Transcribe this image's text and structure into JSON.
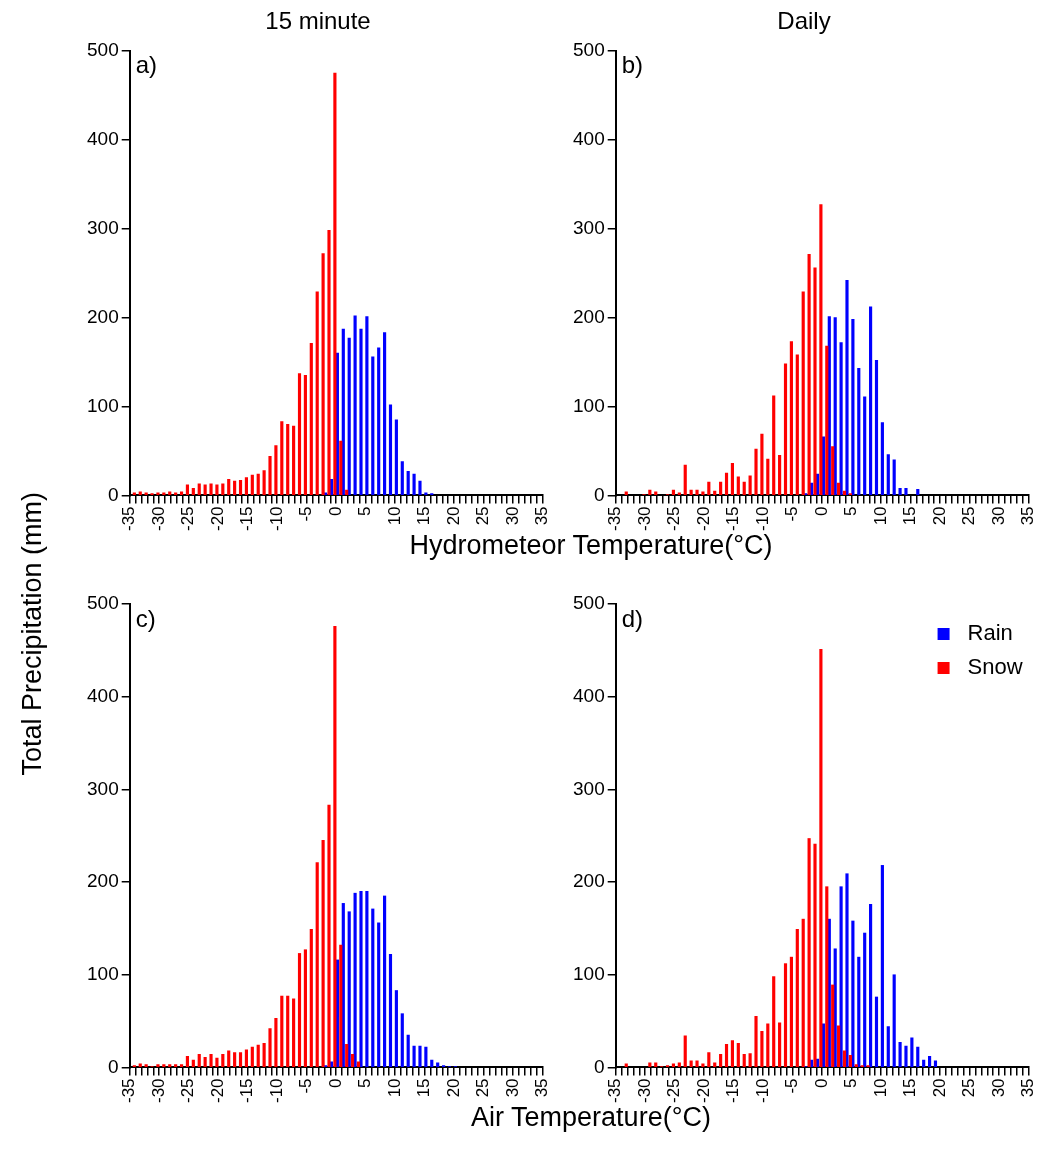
{
  "chart_data": [
    {
      "type": "bar",
      "title": "15 minute",
      "xlabel": "Hydrometeor Temperature(°C)",
      "ylabel": "Total Precipitation (mm)",
      "annotations": [
        "a)"
      ],
      "xlim": [
        -35,
        35
      ],
      "xticks": [
        -35,
        {
          "value": -34,
          "label": null
        },
        {
          "value": -33,
          "label": null
        },
        {
          "value": -32,
          "label": null
        },
        {
          "value": -31,
          "label": null
        },
        -30,
        {
          "value": -29,
          "label": null
        },
        {
          "value": -28,
          "label": null
        },
        {
          "value": -27,
          "label": null
        },
        {
          "value": -26,
          "label": null
        },
        -25,
        {
          "value": -24,
          "label": null
        },
        {
          "value": -23,
          "label": null
        },
        {
          "value": -22,
          "label": null
        },
        {
          "value": -21,
          "label": null
        },
        -20,
        {
          "value": -19,
          "label": null
        },
        {
          "value": -18,
          "label": null
        },
        {
          "value": -17,
          "label": null
        },
        {
          "value": -16,
          "label": null
        },
        -15,
        {
          "value": -14,
          "label": null
        },
        {
          "value": -13,
          "label": null
        },
        {
          "value": -12,
          "label": null
        },
        {
          "value": -11,
          "label": null
        },
        -10,
        {
          "value": -9,
          "label": null
        },
        {
          "value": -8,
          "label": null
        },
        {
          "value": -7,
          "label": null
        },
        {
          "value": -6,
          "label": null
        },
        -5,
        {
          "value": -4,
          "label": null
        },
        {
          "value": -3,
          "label": null
        },
        {
          "value": -2,
          "label": null
        },
        {
          "value": -1,
          "label": null
        },
        0,
        {
          "value": 1,
          "label": null
        },
        {
          "value": 2,
          "label": null
        },
        {
          "value": 3,
          "label": null
        },
        {
          "value": 4,
          "label": null
        },
        5,
        {
          "value": 6,
          "label": null
        },
        {
          "value": 7,
          "label": null
        },
        {
          "value": 8,
          "label": null
        },
        {
          "value": 9,
          "label": null
        },
        10,
        {
          "value": 11,
          "label": null
        },
        {
          "value": 12,
          "label": null
        },
        {
          "value": 13,
          "label": null
        },
        {
          "value": 14,
          "label": null
        },
        15,
        {
          "value": 16,
          "label": null
        },
        {
          "value": 17,
          "label": null
        },
        {
          "value": 18,
          "label": null
        },
        {
          "value": 19,
          "label": null
        },
        20,
        {
          "value": 21,
          "label": null
        },
        {
          "value": 22,
          "label": null
        },
        {
          "value": 23,
          "label": null
        },
        {
          "value": 24,
          "label": null
        },
        25,
        {
          "value": 26,
          "label": null
        },
        {
          "value": 27,
          "label": null
        },
        {
          "value": 28,
          "label": null
        },
        {
          "value": 29,
          "label": null
        },
        30,
        {
          "value": 31,
          "label": null
        },
        {
          "value": 32,
          "label": null
        },
        {
          "value": 33,
          "label": null
        },
        {
          "value": 34,
          "label": null
        },
        35
      ],
      "ylim": [
        0,
        500
      ],
      "yticks": [
        0,
        100,
        200,
        300,
        400,
        500
      ],
      "series": [
        {
          "color": "#0000ff",
          "x": [
            -2,
            -1,
            0,
            1,
            2,
            3,
            4,
            5,
            6,
            7,
            8,
            9,
            10,
            11,
            12,
            13,
            14,
            15,
            16
          ],
          "values": [
            3,
            18,
            160,
            187,
            177,
            202,
            187,
            201,
            156,
            166,
            183,
            102,
            85,
            38,
            27,
            24,
            16,
            3,
            2
          ]
        },
        {
          "color": "#ff0000",
          "x": [
            -34,
            -33,
            -32,
            -31,
            -30,
            -29,
            -28,
            -27,
            -26,
            -25,
            -24,
            -23,
            -22,
            -21,
            -20,
            -19,
            -18,
            -17,
            -16,
            -15,
            -14,
            -13,
            -12,
            -11,
            -10,
            -9,
            -8,
            -7,
            -6,
            -5,
            -4,
            -3,
            -2,
            -1,
            0,
            1,
            2
          ],
          "values": [
            3,
            4,
            3,
            2,
            3,
            3,
            4,
            3,
            4,
            12,
            8,
            13,
            12,
            13,
            12,
            13,
            18,
            16,
            17,
            20,
            23,
            24,
            28,
            44,
            56,
            83,
            80,
            78,
            137,
            135,
            171,
            229,
            272,
            298,
            475,
            61,
            6
          ]
        }
      ]
    },
    {
      "type": "bar",
      "title": "Daily",
      "annotations": [
        "b)"
      ],
      "xlim": [
        -35,
        35
      ],
      "xticks": [
        -35,
        {
          "value": -34,
          "label": null
        },
        {
          "value": -33,
          "label": null
        },
        {
          "value": -32,
          "label": null
        },
        {
          "value": -31,
          "label": null
        },
        -30,
        {
          "value": -29,
          "label": null
        },
        {
          "value": -28,
          "label": null
        },
        {
          "value": -27,
          "label": null
        },
        {
          "value": -26,
          "label": null
        },
        -25,
        {
          "value": -24,
          "label": null
        },
        {
          "value": -23,
          "label": null
        },
        {
          "value": -22,
          "label": null
        },
        {
          "value": -21,
          "label": null
        },
        -20,
        {
          "value": -19,
          "label": null
        },
        {
          "value": -18,
          "label": null
        },
        {
          "value": -17,
          "label": null
        },
        {
          "value": -16,
          "label": null
        },
        -15,
        {
          "value": -14,
          "label": null
        },
        {
          "value": -13,
          "label": null
        },
        {
          "value": -12,
          "label": null
        },
        {
          "value": -11,
          "label": null
        },
        -10,
        {
          "value": -9,
          "label": null
        },
        {
          "value": -8,
          "label": null
        },
        {
          "value": -7,
          "label": null
        },
        {
          "value": -6,
          "label": null
        },
        -5,
        {
          "value": -4,
          "label": null
        },
        {
          "value": -3,
          "label": null
        },
        {
          "value": -2,
          "label": null
        },
        {
          "value": -1,
          "label": null
        },
        0,
        {
          "value": 1,
          "label": null
        },
        {
          "value": 2,
          "label": null
        },
        {
          "value": 3,
          "label": null
        },
        {
          "value": 4,
          "label": null
        },
        5,
        {
          "value": 6,
          "label": null
        },
        {
          "value": 7,
          "label": null
        },
        {
          "value": 8,
          "label": null
        },
        {
          "value": 9,
          "label": null
        },
        10,
        {
          "value": 11,
          "label": null
        },
        {
          "value": 12,
          "label": null
        },
        {
          "value": 13,
          "label": null
        },
        {
          "value": 14,
          "label": null
        },
        15,
        {
          "value": 16,
          "label": null
        },
        {
          "value": 17,
          "label": null
        },
        {
          "value": 18,
          "label": null
        },
        {
          "value": 19,
          "label": null
        },
        20,
        {
          "value": 21,
          "label": null
        },
        {
          "value": 22,
          "label": null
        },
        {
          "value": 23,
          "label": null
        },
        {
          "value": 24,
          "label": null
        },
        25,
        {
          "value": 26,
          "label": null
        },
        {
          "value": 27,
          "label": null
        },
        {
          "value": 28,
          "label": null
        },
        {
          "value": 29,
          "label": null
        },
        30,
        {
          "value": 31,
          "label": null
        },
        {
          "value": 32,
          "label": null
        },
        {
          "value": 33,
          "label": null
        },
        {
          "value": 34,
          "label": null
        },
        35
      ],
      "ylim": [
        0,
        500
      ],
      "yticks": [
        0,
        100,
        200,
        300,
        400,
        500
      ],
      "series": [
        {
          "color": "#0000ff",
          "x": [
            -3,
            -2,
            -1,
            0,
            1,
            2,
            3,
            4,
            5,
            6,
            7,
            8,
            9,
            10,
            11,
            12,
            13,
            14,
            16
          ],
          "values": [
            2,
            14,
            24,
            66,
            201,
            200,
            172,
            242,
            198,
            143,
            111,
            212,
            152,
            82,
            46,
            40,
            8,
            8,
            7
          ]
        },
        {
          "color": "#ff0000",
          "x": [
            -33,
            -30,
            -29,
            -28,
            -26,
            -25,
            -24,
            -23,
            -22,
            -21,
            -20,
            -19,
            -18,
            -17,
            -16,
            -15,
            -14,
            -13,
            -12,
            -11,
            -10,
            -9,
            -8,
            -7,
            -6,
            -5,
            -4,
            -3,
            -2,
            -1,
            0,
            1,
            2,
            3,
            4,
            5
          ],
          "values": [
            4,
            1,
            6,
            4,
            1,
            6,
            3,
            34,
            6,
            6,
            4,
            15,
            5,
            15,
            25,
            36,
            21,
            15,
            22,
            52,
            69,
            41,
            112,
            45,
            148,
            173,
            158,
            229,
            271,
            256,
            327,
            168,
            55,
            14,
            5,
            2
          ]
        }
      ]
    },
    {
      "type": "bar",
      "xlabel": "Air Temperature(°C)",
      "annotations": [
        "c)"
      ],
      "xlim": [
        -35,
        35
      ],
      "xticks": [
        -35,
        {
          "value": -34,
          "label": null
        },
        {
          "value": -33,
          "label": null
        },
        {
          "value": -32,
          "label": null
        },
        {
          "value": -31,
          "label": null
        },
        -30,
        {
          "value": -29,
          "label": null
        },
        {
          "value": -28,
          "label": null
        },
        {
          "value": -27,
          "label": null
        },
        {
          "value": -26,
          "label": null
        },
        -25,
        {
          "value": -24,
          "label": null
        },
        {
          "value": -23,
          "label": null
        },
        {
          "value": -22,
          "label": null
        },
        {
          "value": -21,
          "label": null
        },
        -20,
        {
          "value": -19,
          "label": null
        },
        {
          "value": -18,
          "label": null
        },
        {
          "value": -17,
          "label": null
        },
        {
          "value": -16,
          "label": null
        },
        -15,
        {
          "value": -14,
          "label": null
        },
        {
          "value": -13,
          "label": null
        },
        {
          "value": -12,
          "label": null
        },
        {
          "value": -11,
          "label": null
        },
        -10,
        {
          "value": -9,
          "label": null
        },
        {
          "value": -8,
          "label": null
        },
        {
          "value": -7,
          "label": null
        },
        {
          "value": -6,
          "label": null
        },
        -5,
        {
          "value": -4,
          "label": null
        },
        {
          "value": -3,
          "label": null
        },
        {
          "value": -2,
          "label": null
        },
        {
          "value": -1,
          "label": null
        },
        0,
        {
          "value": 1,
          "label": null
        },
        {
          "value": 2,
          "label": null
        },
        {
          "value": 3,
          "label": null
        },
        {
          "value": 4,
          "label": null
        },
        5,
        {
          "value": 6,
          "label": null
        },
        {
          "value": 7,
          "label": null
        },
        {
          "value": 8,
          "label": null
        },
        {
          "value": 9,
          "label": null
        },
        10,
        {
          "value": 11,
          "label": null
        },
        {
          "value": 12,
          "label": null
        },
        {
          "value": 13,
          "label": null
        },
        {
          "value": 14,
          "label": null
        },
        15,
        {
          "value": 16,
          "label": null
        },
        {
          "value": 17,
          "label": null
        },
        {
          "value": 18,
          "label": null
        },
        {
          "value": 19,
          "label": null
        },
        20,
        {
          "value": 21,
          "label": null
        },
        {
          "value": 22,
          "label": null
        },
        {
          "value": 23,
          "label": null
        },
        {
          "value": 24,
          "label": null
        },
        25,
        {
          "value": 26,
          "label": null
        },
        {
          "value": 27,
          "label": null
        },
        {
          "value": 28,
          "label": null
        },
        {
          "value": 29,
          "label": null
        },
        30,
        {
          "value": 31,
          "label": null
        },
        {
          "value": 32,
          "label": null
        },
        {
          "value": 33,
          "label": null
        },
        {
          "value": 34,
          "label": null
        },
        35
      ],
      "ylim": [
        0,
        500
      ],
      "yticks": [
        0,
        100,
        200,
        300,
        400,
        500
      ],
      "series": [
        {
          "color": "#0000ff",
          "x": [
            -2,
            -1,
            0,
            1,
            2,
            3,
            4,
            5,
            6,
            7,
            8,
            9,
            10,
            11,
            12,
            13,
            14,
            15,
            16,
            17,
            18,
            19,
            20
          ],
          "values": [
            2,
            6,
            116,
            177,
            168,
            188,
            190,
            190,
            171,
            156,
            185,
            122,
            83,
            58,
            35,
            23,
            23,
            22,
            8,
            5,
            2,
            1,
            1
          ]
        },
        {
          "color": "#ff0000",
          "x": [
            -34,
            -33,
            -32,
            -31,
            -30,
            -29,
            -28,
            -27,
            -26,
            -25,
            -24,
            -23,
            -22,
            -21,
            -20,
            -19,
            -18,
            -17,
            -16,
            -15,
            -14,
            -13,
            -12,
            -11,
            -10,
            -9,
            -8,
            -7,
            -6,
            -5,
            -4,
            -3,
            -2,
            -1,
            0,
            1,
            2,
            3,
            4
          ],
          "values": [
            2,
            4,
            3,
            1,
            3,
            3,
            3,
            3,
            3,
            12,
            8,
            14,
            11,
            14,
            10,
            14,
            18,
            16,
            16,
            19,
            22,
            24,
            26,
            42,
            53,
            77,
            77,
            74,
            123,
            127,
            149,
            221,
            245,
            283,
            476,
            132,
            25,
            14,
            6
          ]
        }
      ]
    },
    {
      "type": "bar",
      "annotations": [
        "d)"
      ],
      "legend": "top right",
      "xlim": [
        -35,
        35
      ],
      "xticks": [
        -35,
        {
          "value": -34,
          "label": null
        },
        {
          "value": -33,
          "label": null
        },
        {
          "value": -32,
          "label": null
        },
        {
          "value": -31,
          "label": null
        },
        -30,
        {
          "value": -29,
          "label": null
        },
        {
          "value": -28,
          "label": null
        },
        {
          "value": -27,
          "label": null
        },
        {
          "value": -26,
          "label": null
        },
        -25,
        {
          "value": -24,
          "label": null
        },
        {
          "value": -23,
          "label": null
        },
        {
          "value": -22,
          "label": null
        },
        {
          "value": -21,
          "label": null
        },
        -20,
        {
          "value": -19,
          "label": null
        },
        {
          "value": -18,
          "label": null
        },
        {
          "value": -17,
          "label": null
        },
        {
          "value": -16,
          "label": null
        },
        -15,
        {
          "value": -14,
          "label": null
        },
        {
          "value": -13,
          "label": null
        },
        {
          "value": -12,
          "label": null
        },
        {
          "value": -11,
          "label": null
        },
        -10,
        {
          "value": -9,
          "label": null
        },
        {
          "value": -8,
          "label": null
        },
        {
          "value": -7,
          "label": null
        },
        {
          "value": -6,
          "label": null
        },
        -5,
        {
          "value": -4,
          "label": null
        },
        {
          "value": -3,
          "label": null
        },
        {
          "value": -2,
          "label": null
        },
        {
          "value": -1,
          "label": null
        },
        0,
        {
          "value": 1,
          "label": null
        },
        {
          "value": 2,
          "label": null
        },
        {
          "value": 3,
          "label": null
        },
        {
          "value": 4,
          "label": null
        },
        5,
        {
          "value": 6,
          "label": null
        },
        {
          "value": 7,
          "label": null
        },
        {
          "value": 8,
          "label": null
        },
        {
          "value": 9,
          "label": null
        },
        10,
        {
          "value": 11,
          "label": null
        },
        {
          "value": 12,
          "label": null
        },
        {
          "value": 13,
          "label": null
        },
        {
          "value": 14,
          "label": null
        },
        15,
        {
          "value": 16,
          "label": null
        },
        {
          "value": 17,
          "label": null
        },
        {
          "value": 18,
          "label": null
        },
        {
          "value": 19,
          "label": null
        },
        20,
        {
          "value": 21,
          "label": null
        },
        {
          "value": 22,
          "label": null
        },
        {
          "value": 23,
          "label": null
        },
        {
          "value": 24,
          "label": null
        },
        25,
        {
          "value": 26,
          "label": null
        },
        {
          "value": 27,
          "label": null
        },
        {
          "value": 28,
          "label": null
        },
        {
          "value": 29,
          "label": null
        },
        30,
        {
          "value": 31,
          "label": null
        },
        {
          "value": 32,
          "label": null
        },
        {
          "value": 33,
          "label": null
        },
        {
          "value": 34,
          "label": null
        },
        35
      ],
      "ylim": [
        0,
        500
      ],
      "yticks": [
        0,
        100,
        200,
        300,
        400,
        500
      ],
      "series": [
        {
          "name": "Rain",
          "color": "#0000ff",
          "x": [
            -3,
            -2,
            -1,
            0,
            1,
            2,
            3,
            4,
            5,
            6,
            7,
            8,
            9,
            10,
            11,
            12,
            13,
            14,
            15,
            16,
            17,
            18,
            19
          ],
          "values": [
            1,
            8,
            9,
            47,
            160,
            128,
            195,
            209,
            158,
            119,
            145,
            176,
            76,
            218,
            44,
            100,
            27,
            23,
            32,
            22,
            8,
            12,
            7
          ]
        },
        {
          "name": "Snow",
          "color": "#ff0000",
          "x": [
            -33,
            -29,
            -28,
            -27,
            -26,
            -25,
            -24,
            -23,
            -22,
            -21,
            -20,
            -19,
            -18,
            -17,
            -16,
            -15,
            -14,
            -13,
            -12,
            -11,
            -10,
            -9,
            -8,
            -7,
            -6,
            -5,
            -4,
            -3,
            -2,
            -1,
            0,
            1,
            2,
            3,
            4,
            5,
            6,
            7,
            8
          ],
          "values": [
            4,
            5,
            5,
            1,
            2,
            4,
            5,
            34,
            7,
            7,
            4,
            16,
            5,
            14,
            25,
            29,
            26,
            14,
            15,
            55,
            39,
            47,
            98,
            48,
            112,
            119,
            149,
            160,
            247,
            241,
            451,
            195,
            89,
            45,
            18,
            13,
            3,
            2,
            2
          ]
        }
      ]
    }
  ]
}
